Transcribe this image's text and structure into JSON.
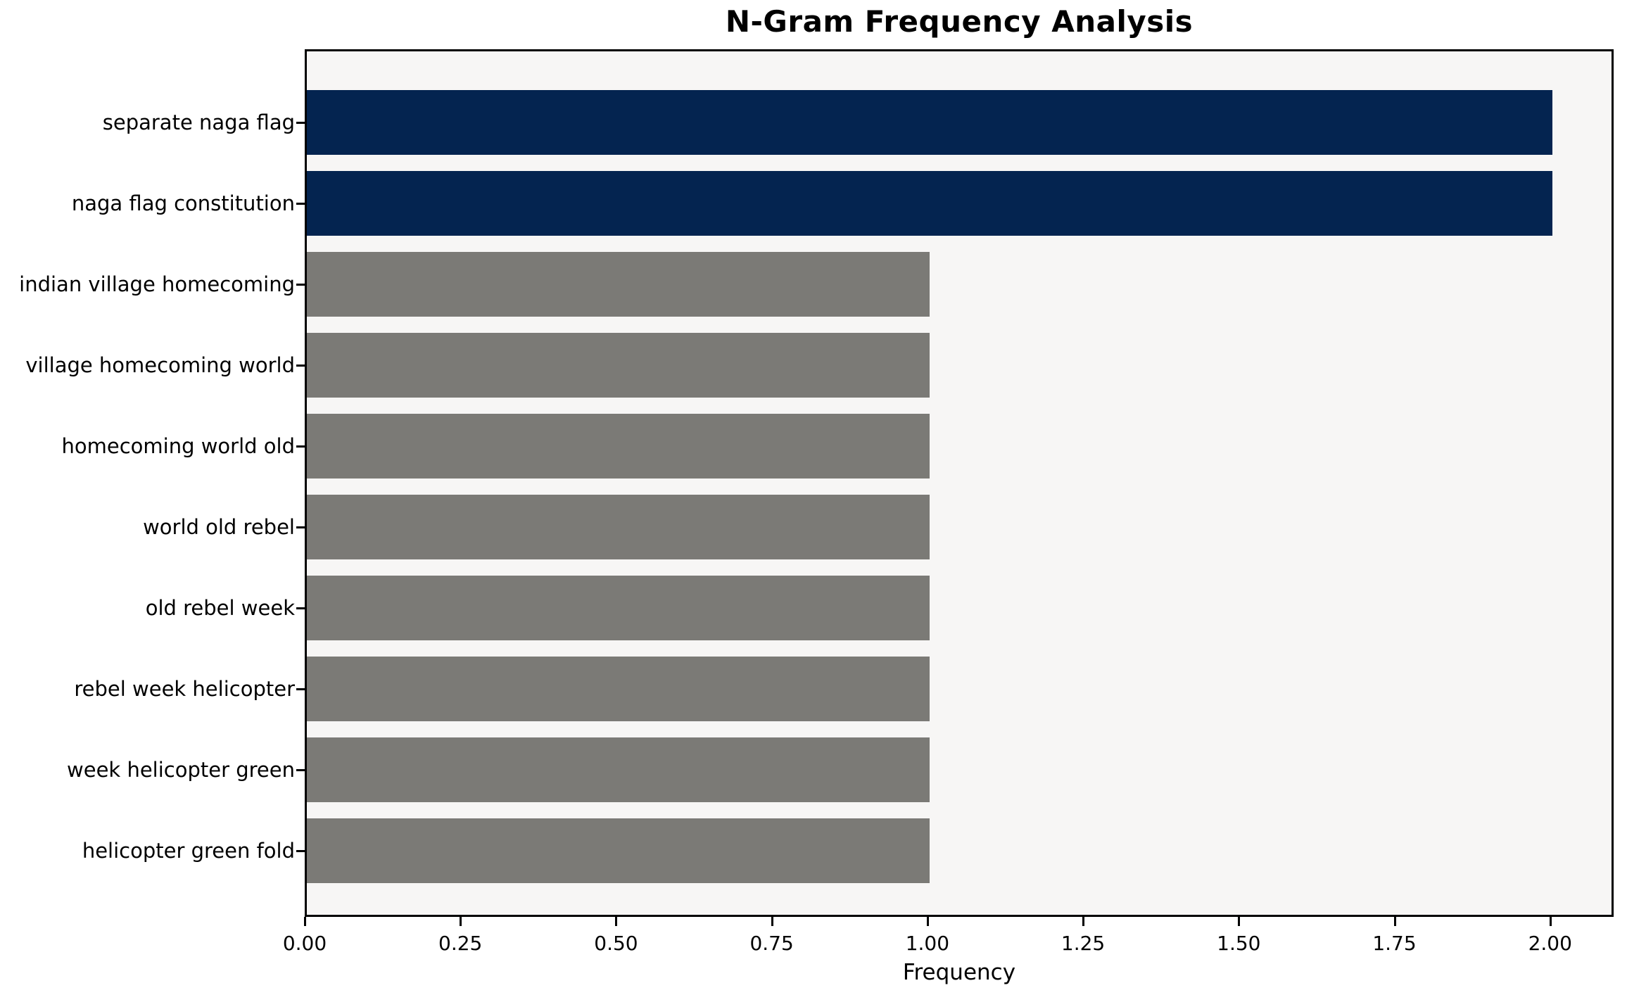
{
  "figure": {
    "background": "#ffffff",
    "plot_background": "#f7f6f5",
    "spine_color": "#000000",
    "text_color": "#000000"
  },
  "chart_data": {
    "type": "bar",
    "orientation": "horizontal",
    "title": "N-Gram Frequency Analysis",
    "xlabel": "Frequency",
    "ylabel": "",
    "categories": [
      "separate naga flag",
      "naga flag constitution",
      "indian village homecoming",
      "village homecoming world",
      "homecoming world old",
      "world old rebel",
      "old rebel week",
      "rebel week helicopter",
      "week helicopter green",
      "helicopter green fold"
    ],
    "values": [
      2,
      2,
      1,
      1,
      1,
      1,
      1,
      1,
      1,
      1
    ],
    "bar_colors": [
      "#042450",
      "#042450",
      "#7b7a76",
      "#7b7a76",
      "#7b7a76",
      "#7b7a76",
      "#7b7a76",
      "#7b7a76",
      "#7b7a76",
      "#7b7a76"
    ],
    "highlight_color": "#042450",
    "base_color": "#7b7a76",
    "x_tick_labels": [
      "0.00",
      "0.25",
      "0.50",
      "0.75",
      "1.00",
      "1.25",
      "1.50",
      "1.75",
      "2.00"
    ],
    "x_tick_values": [
      0,
      0.25,
      0.5,
      0.75,
      1.0,
      1.25,
      1.5,
      1.75,
      2.0
    ],
    "xlim": [
      0,
      2.102
    ],
    "grid": false,
    "legend": null
  }
}
